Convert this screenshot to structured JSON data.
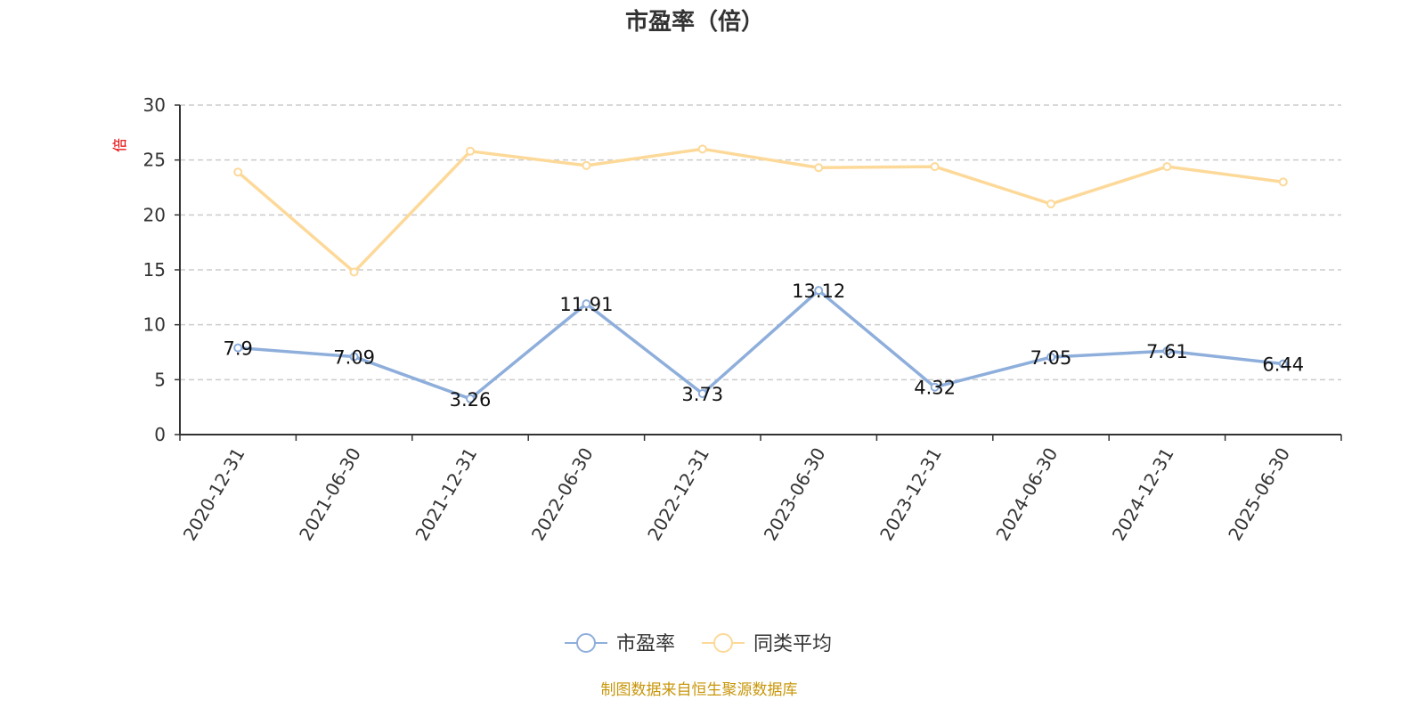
{
  "chart_data": {
    "type": "line",
    "title": "市盈率（倍）",
    "ylabel": "倍",
    "xlabel": "",
    "categories": [
      "2020-12-31",
      "2021-06-30",
      "2021-12-31",
      "2022-06-30",
      "2022-12-31",
      "2023-06-30",
      "2023-12-31",
      "2024-06-30",
      "2024-12-31",
      "2025-06-30"
    ],
    "ylim": [
      0,
      30
    ],
    "yticks": [
      0,
      5,
      10,
      15,
      20,
      25,
      30
    ],
    "grid": true,
    "legend_position": "bottom",
    "series": [
      {
        "name": "市盈率",
        "values": [
          7.9,
          7.09,
          3.26,
          11.91,
          3.73,
          13.12,
          4.32,
          7.05,
          7.61,
          6.44
        ],
        "labels": [
          "7.9",
          "7.09",
          "3.26",
          "11.91",
          "3.73",
          "13.12",
          "4.32",
          "7.05",
          "7.61",
          "6.44"
        ],
        "color": "#8eaedb",
        "show_labels": true
      },
      {
        "name": "同类平均",
        "values": [
          23.9,
          14.8,
          25.8,
          24.5,
          26.0,
          24.3,
          24.4,
          21.0,
          24.4,
          23.0
        ],
        "color": "#fdd999",
        "show_labels": false
      }
    ],
    "source_note": "制图数据来自恒生聚源数据库"
  },
  "colors": {
    "axis": "#333333",
    "grid": "#cccccc",
    "title": "#333333",
    "ylabel": "#e60000",
    "source": "#c8960a"
  }
}
